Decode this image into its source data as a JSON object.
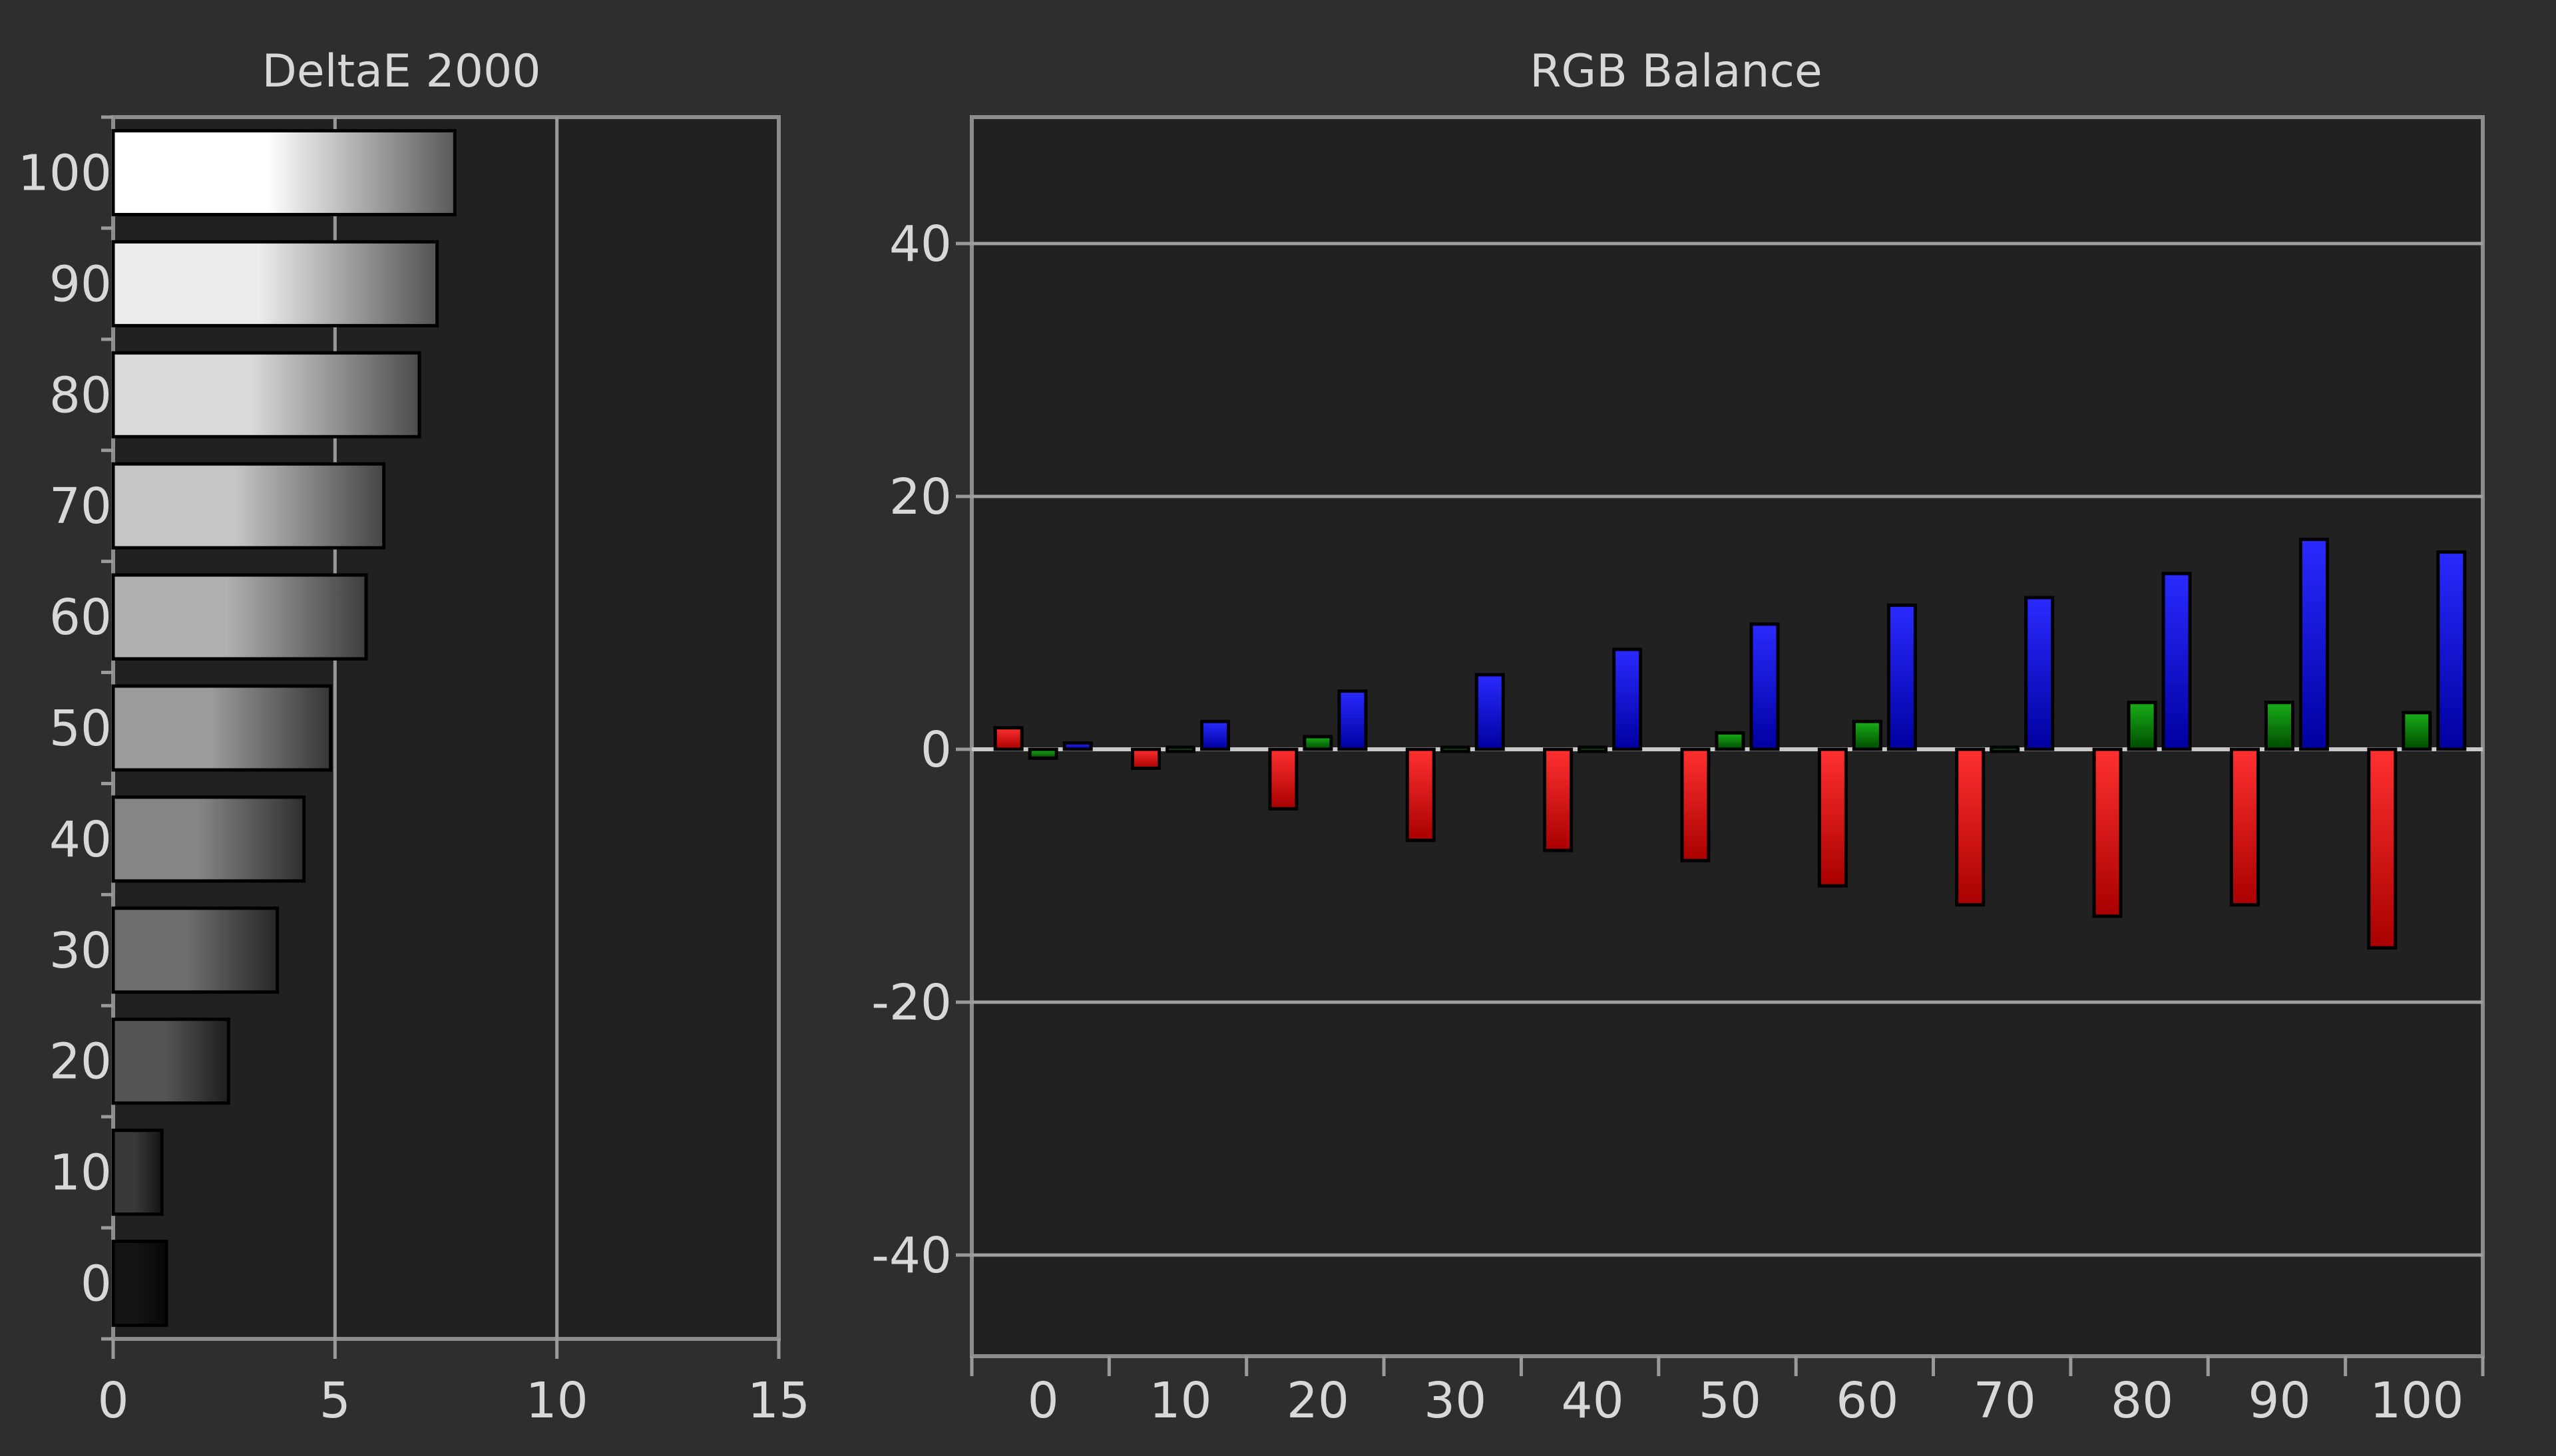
{
  "chart_data": [
    {
      "type": "bar",
      "orientation": "horizontal",
      "title": "DeltaE 2000",
      "categories": [
        "0",
        "10",
        "20",
        "30",
        "40",
        "50",
        "60",
        "70",
        "80",
        "90",
        "100"
      ],
      "values": [
        1.2,
        1.1,
        2.6,
        3.7,
        4.3,
        4.9,
        5.7,
        6.1,
        6.9,
        7.3,
        7.7
      ],
      "xlim": [
        0,
        15
      ],
      "xticks": [
        "0",
        "5",
        "10",
        "15"
      ],
      "grid": "vertical lines at 5 and 10",
      "bar_fill": "grayscale gradient matching each gray level"
    },
    {
      "type": "bar",
      "title": "RGB Balance",
      "categories": [
        "0",
        "10",
        "20",
        "30",
        "40",
        "50",
        "60",
        "70",
        "80",
        "90",
        "100"
      ],
      "ylim": [
        -48,
        50
      ],
      "yticks": [
        "40",
        "20",
        "0",
        "-20",
        "-40"
      ],
      "grid": "horizontal lines at 40, 20, -20, -40",
      "series": [
        {
          "color": "#e00000",
          "values": [
            1.7,
            -1.5,
            -4.7,
            -7.2,
            -8.0,
            -8.8,
            -10.8,
            -12.3,
            -13.2,
            -12.3,
            -15.7
          ]
        },
        {
          "color": "#0c8c0c",
          "values": [
            -0.7,
            0.0,
            1.0,
            0.0,
            -0.3,
            1.3,
            2.2,
            0.0,
            3.7,
            3.7,
            2.9
          ]
        },
        {
          "color": "#1414e6",
          "values": [
            0.5,
            2.2,
            4.6,
            5.9,
            7.9,
            9.9,
            11.4,
            12.0,
            13.9,
            16.6,
            15.6
          ]
        }
      ]
    }
  ]
}
